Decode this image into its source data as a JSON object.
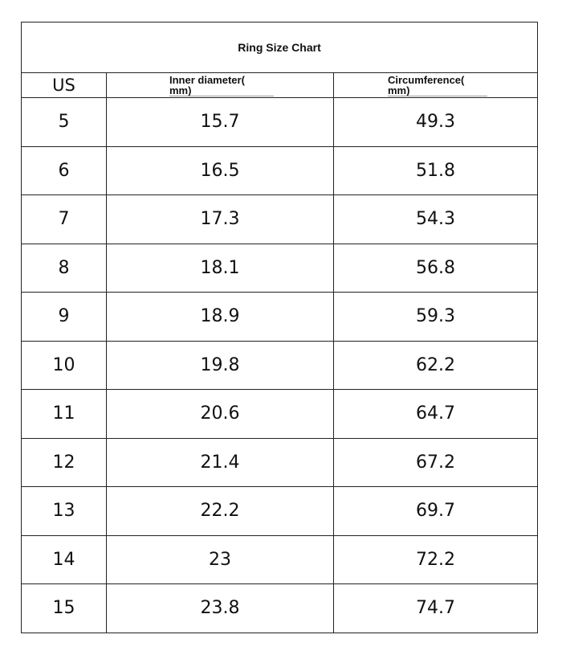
{
  "title": "Ring Size Chart",
  "columns": [
    "US",
    "Inner diameter(",
    "mm)",
    "Circumference(",
    "mm)"
  ],
  "headers": {
    "us": "US",
    "inner_line1": "Inner diameter(",
    "inner_line2": "mm)",
    "circ_line1": "Circumference(",
    "circ_line2": "mm)"
  },
  "rows": [
    {
      "us": "5",
      "inner": "15.7",
      "circ": "49.3"
    },
    {
      "us": "6",
      "inner": "16.5",
      "circ": "51.8"
    },
    {
      "us": "7",
      "inner": "17.3",
      "circ": "54.3"
    },
    {
      "us": "8",
      "inner": "18.1",
      "circ": "56.8"
    },
    {
      "us": "9",
      "inner": "18.9",
      "circ": "59.3"
    },
    {
      "us": "10",
      "inner": "19.8",
      "circ": "62.2"
    },
    {
      "us": "11",
      "inner": "20.6",
      "circ": "64.7"
    },
    {
      "us": "12",
      "inner": "21.4",
      "circ": "67.2"
    },
    {
      "us": "13",
      "inner": "22.2",
      "circ": "69.7"
    },
    {
      "us": "14",
      "inner": "23",
      "circ": "72.2"
    },
    {
      "us": "15",
      "inner": "23.8",
      "circ": "74.7"
    }
  ]
}
